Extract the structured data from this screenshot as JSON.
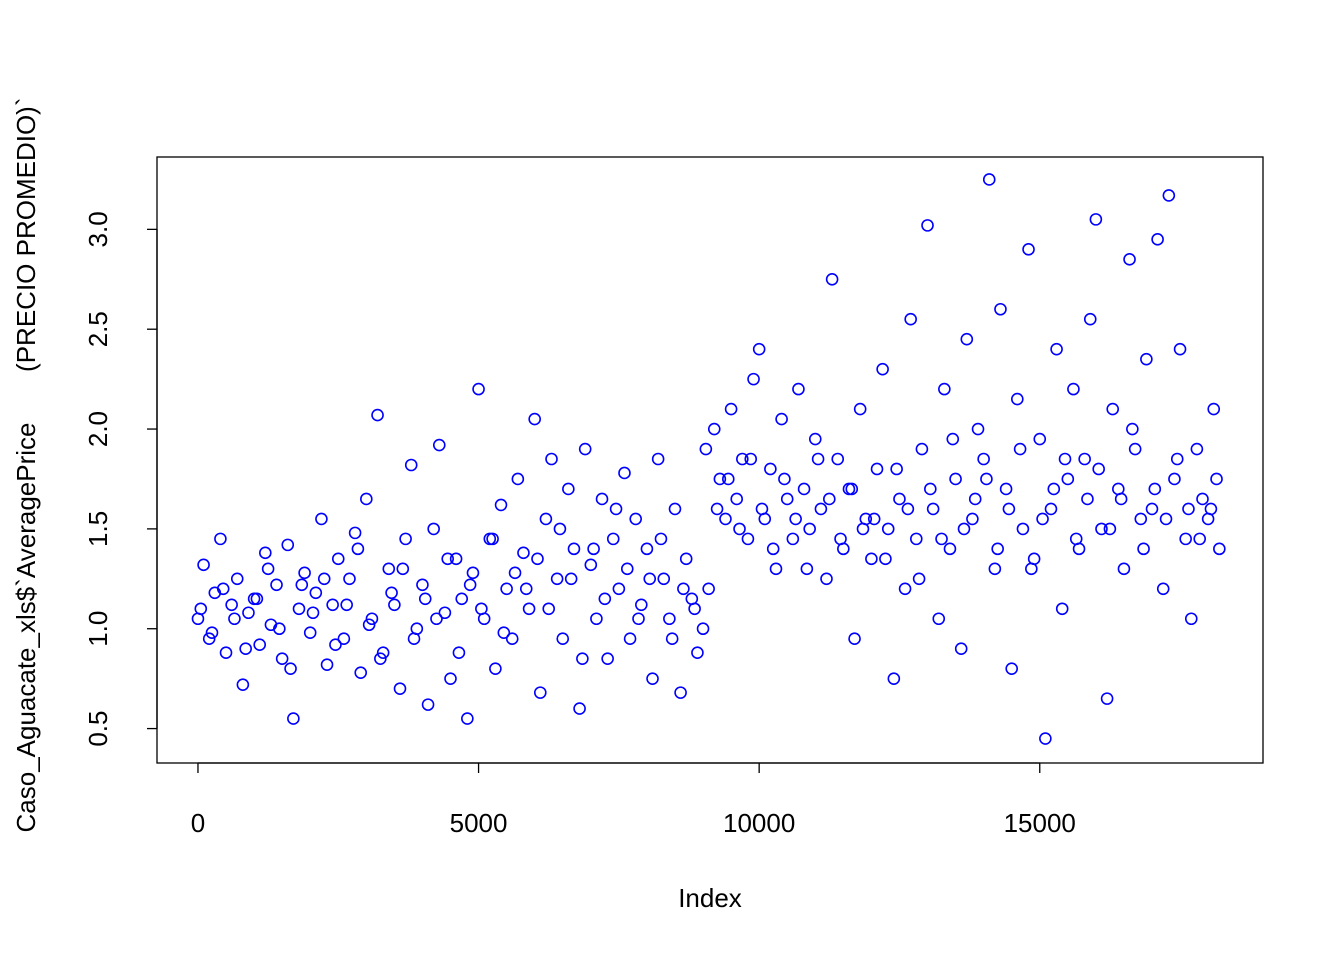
{
  "chart_data": {
    "type": "scatter",
    "xlabel": "Index",
    "ylabel": "Caso_Aguacate_xls$`AveragePrice       (PRECIO PROMEDIO)`",
    "color": "#0000ff",
    "xlim": [
      -730,
      18978
    ],
    "ylim": [
      0.3276,
      3.3624
    ],
    "xticks": [
      0,
      5000,
      10000,
      15000
    ],
    "yticks": [
      0.5,
      {
        "value": 1,
        "label": "1.0"
      },
      1.5,
      {
        "value": 2,
        "label": "2.0"
      },
      2.5,
      {
        "value": 3,
        "label": "3.0"
      }
    ],
    "x": [
      0,
      100,
      200,
      300,
      400,
      500,
      600,
      700,
      800,
      900,
      1000,
      1100,
      1200,
      1300,
      1400,
      1500,
      1600,
      1700,
      1800,
      1900,
      2000,
      2100,
      2200,
      2300,
      2400,
      2500,
      2600,
      2700,
      2800,
      2900,
      3000,
      3100,
      3200,
      3300,
      3400,
      3500,
      3600,
      3700,
      3800,
      3900,
      4000,
      4100,
      4200,
      4300,
      4400,
      4500,
      4600,
      4700,
      4800,
      4900,
      5000,
      5100,
      5200,
      5300,
      5400,
      5500,
      5600,
      5700,
      5800,
      5900,
      6000,
      6100,
      6200,
      6300,
      6400,
      6500,
      6600,
      6700,
      6800,
      6900,
      7000,
      7100,
      7200,
      7300,
      7400,
      7500,
      7600,
      7700,
      7800,
      7900,
      8000,
      8100,
      8200,
      8300,
      8400,
      8500,
      8600,
      8700,
      8800,
      8900,
      9000,
      9100,
      9200,
      9300,
      9400,
      9500,
      9600,
      9700,
      9800,
      9900,
      10000,
      10100,
      10200,
      10300,
      10400,
      10500,
      10600,
      10700,
      10800,
      10900,
      11000,
      11100,
      11200,
      11300,
      11400,
      11500,
      11600,
      11700,
      11800,
      11900,
      12000,
      12100,
      12200,
      12300,
      12400,
      12500,
      12600,
      12700,
      12800,
      12900,
      13000,
      13100,
      13200,
      13300,
      13400,
      13500,
      13600,
      13700,
      13800,
      13900,
      14000,
      14100,
      14200,
      14300,
      14400,
      14500,
      14600,
      14700,
      14800,
      14900,
      15000,
      15100,
      15200,
      15300,
      15400,
      15500,
      15600,
      15700,
      15800,
      15900,
      16000,
      16100,
      16200,
      16300,
      16400,
      16500,
      16600,
      16700,
      16800,
      16900,
      17000,
      17100,
      17200,
      17300,
      17400,
      17500,
      17600,
      17700,
      17800,
      17900,
      18000,
      18100,
      18200,
      50,
      250,
      450,
      650,
      850,
      1050,
      1250,
      1450,
      1650,
      1850,
      2050,
      2250,
      2450,
      2650,
      2850,
      3050,
      3250,
      3450,
      3650,
      3850,
      4050,
      4250,
      4450,
      4650,
      4850,
      5050,
      5250,
      5450,
      5650,
      5850,
      6050,
      6250,
      6450,
      6650,
      6850,
      7050,
      7250,
      7450,
      7650,
      7850,
      8050,
      8250,
      8450,
      8650,
      8850,
      9050,
      9250,
      9450,
      9650,
      9850,
      10050,
      10250,
      10450,
      10650,
      10850,
      11050,
      11250,
      11450,
      11650,
      11850,
      12050,
      12250,
      12450,
      12650,
      12850,
      13050,
      13250,
      13450,
      13650,
      13850,
      14050,
      14250,
      14450,
      14650,
      14850,
      15050,
      15250,
      15450,
      15650,
      15850,
      16050,
      16250,
      16450,
      16650,
      16850,
      17050,
      17250,
      17450,
      17650,
      17850,
      18050,
      18150
    ],
    "values": [
      1.05,
      1.32,
      0.95,
      1.18,
      1.45,
      0.88,
      1.12,
      1.25,
      0.72,
      1.08,
      1.15,
      0.92,
      1.38,
      1.02,
      1.22,
      0.85,
      1.42,
      0.55,
      1.1,
      1.28,
      0.98,
      1.18,
      1.55,
      0.82,
      1.12,
      1.35,
      0.95,
      1.25,
      1.48,
      0.78,
      1.65,
      1.05,
      2.07,
      0.88,
      1.3,
      1.12,
      0.7,
      1.45,
      1.82,
      1.0,
      1.22,
      0.62,
      1.5,
      1.92,
      1.08,
      0.75,
      1.35,
      1.15,
      0.55,
      1.28,
      2.2,
      1.05,
      1.45,
      0.8,
      1.62,
      1.2,
      0.95,
      1.75,
      1.38,
      1.1,
      2.05,
      0.68,
      1.55,
      1.85,
      1.25,
      0.95,
      1.7,
      1.4,
      0.6,
      1.9,
      1.32,
      1.05,
      1.65,
      0.85,
      1.45,
      1.2,
      1.78,
      0.95,
      1.55,
      1.12,
      1.4,
      0.75,
      1.85,
      1.25,
      1.05,
      1.6,
      0.68,
      1.35,
      1.15,
      0.88,
      1.0,
      1.2,
      2.0,
      1.75,
      1.55,
      2.1,
      1.65,
      1.85,
      1.45,
      2.25,
      2.4,
      1.55,
      1.8,
      1.3,
      2.05,
      1.65,
      1.45,
      2.2,
      1.7,
      1.5,
      1.95,
      1.6,
      1.25,
      2.75,
      1.85,
      1.4,
      1.7,
      0.95,
      2.1,
      1.55,
      1.35,
      1.8,
      2.3,
      1.5,
      0.75,
      1.65,
      1.2,
      2.55,
      1.45,
      1.9,
      3.02,
      1.6,
      1.05,
      2.2,
      1.4,
      1.75,
      0.9,
      2.45,
      1.55,
      2.0,
      1.85,
      3.25,
      1.3,
      2.6,
      1.7,
      0.8,
      2.15,
      1.5,
      2.9,
      1.35,
      1.95,
      0.45,
      1.6,
      2.4,
      1.1,
      1.75,
      2.2,
      1.4,
      1.85,
      2.55,
      3.05,
      1.5,
      0.65,
      2.1,
      1.7,
      1.3,
      2.85,
      1.9,
      1.55,
      2.35,
      1.6,
      2.95,
      1.2,
      3.17,
      1.75,
      2.4,
      1.45,
      1.05,
      1.9,
      1.65,
      1.55,
      2.1,
      1.4,
      1.1,
      0.98,
      1.2,
      1.05,
      0.9,
      1.15,
      1.3,
      1.0,
      0.8,
      1.22,
      1.08,
      1.25,
      0.92,
      1.12,
      1.4,
      1.02,
      0.85,
      1.18,
      1.3,
      0.95,
      1.15,
      1.05,
      1.35,
      0.88,
      1.22,
      1.1,
      1.45,
      0.98,
      1.28,
      1.2,
      1.35,
      1.1,
      1.5,
      1.25,
      0.85,
      1.4,
      1.15,
      1.6,
      1.3,
      1.05,
      1.25,
      1.45,
      0.95,
      1.2,
      1.1,
      1.9,
      1.6,
      1.75,
      1.5,
      1.85,
      1.6,
      1.4,
      1.75,
      1.55,
      1.3,
      1.85,
      1.65,
      1.45,
      1.7,
      1.5,
      1.55,
      1.35,
      1.8,
      1.6,
      1.25,
      1.7,
      1.45,
      1.95,
      1.5,
      1.65,
      1.75,
      1.4,
      1.6,
      1.9,
      1.3,
      1.55,
      1.7,
      1.85,
      1.45,
      1.65,
      1.8,
      1.5,
      1.65,
      2.0,
      1.4,
      1.7,
      1.55,
      1.85,
      1.6,
      1.45,
      1.6,
      1.75
    ]
  }
}
